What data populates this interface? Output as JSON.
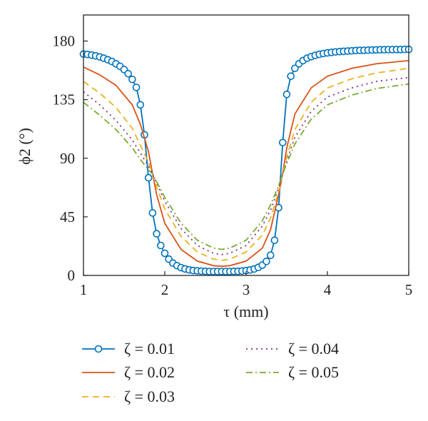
{
  "chart_data": {
    "type": "line",
    "xlabel": "τ (mm)",
    "ylabel": "ϕ2 (°)",
    "xlim": [
      1,
      5
    ],
    "ylim": [
      0,
      200
    ],
    "x_ticks": [
      "1",
      "2",
      "3",
      "4",
      "5"
    ],
    "y_ticks": [
      "0",
      "45",
      "90",
      "135",
      "180"
    ],
    "grid": false,
    "legend": "below",
    "series": [
      {
        "name": "ζ = 0.01",
        "color": "#0072BD",
        "style": "solid",
        "marker": "circle",
        "x": [
          1.0,
          1.05,
          1.1,
          1.15,
          1.2,
          1.25,
          1.3,
          1.35,
          1.4,
          1.45,
          1.5,
          1.55,
          1.6,
          1.65,
          1.7,
          1.75,
          1.8,
          1.85,
          1.9,
          1.95,
          2.0,
          2.05,
          2.1,
          2.15,
          2.2,
          2.25,
          2.3,
          2.35,
          2.4,
          2.45,
          2.5,
          2.55,
          2.6,
          2.65,
          2.7,
          2.75,
          2.8,
          2.85,
          2.9,
          2.95,
          3.0,
          3.05,
          3.1,
          3.15,
          3.2,
          3.25,
          3.3,
          3.35,
          3.4,
          3.45,
          3.5,
          3.55,
          3.6,
          3.65,
          3.7,
          3.75,
          3.8,
          3.85,
          3.9,
          3.95,
          4.0,
          4.05,
          4.1,
          4.15,
          4.2,
          4.25,
          4.3,
          4.35,
          4.4,
          4.45,
          4.5,
          4.55,
          4.6,
          4.65,
          4.7,
          4.75,
          4.8,
          4.85,
          4.9,
          4.95,
          5.0
        ],
        "y": [
          170.0,
          169.7,
          169.2,
          168.6,
          167.8,
          166.8,
          165.6,
          164.3,
          162.5,
          160.6,
          158.1,
          154.9,
          150.5,
          144.4,
          131.0,
          108.0,
          75.0,
          48.0,
          32.0,
          23.0,
          17.0,
          12.5,
          9.5,
          7.5,
          6.0,
          5.0,
          4.3,
          3.8,
          3.5,
          3.3,
          3.1,
          3.0,
          3.0,
          3.0,
          3.0,
          3.0,
          3.0,
          3.1,
          3.2,
          3.4,
          3.7,
          4.2,
          5.0,
          6.2,
          8.0,
          10.8,
          15.5,
          27.0,
          52.0,
          102.0,
          139.0,
          153.0,
          159.0,
          162.5,
          165.0,
          166.8,
          168.0,
          169.0,
          169.8,
          170.4,
          170.9,
          171.3,
          171.6,
          171.9,
          172.1,
          172.3,
          172.5,
          172.7,
          172.8,
          172.9,
          173.0,
          173.1,
          173.2,
          173.3,
          173.3,
          173.4,
          173.4,
          173.5,
          173.5,
          173.6,
          173.6
        ]
      },
      {
        "name": "ζ = 0.02",
        "color": "#D95319",
        "style": "solid",
        "marker": "none",
        "x": [
          1.0,
          1.2,
          1.4,
          1.6,
          1.7,
          1.8,
          1.85,
          1.9,
          2.0,
          2.2,
          2.4,
          2.6,
          2.7,
          2.8,
          3.0,
          3.2,
          3.3,
          3.4,
          3.45,
          3.5,
          3.6,
          3.8,
          4.0,
          4.3,
          4.6,
          5.0
        ],
        "y": [
          160.0,
          154.0,
          146.0,
          131.0,
          116.0,
          95.0,
          78.0,
          62.0,
          40.0,
          20.0,
          11.0,
          7.5,
          7.0,
          7.5,
          11.0,
          21.0,
          35.0,
          62.0,
          78.0,
          98.0,
          124.0,
          144.0,
          153.0,
          159.0,
          162.5,
          165.0
        ]
      },
      {
        "name": "ζ = 0.03",
        "color": "#EDB120",
        "style": "dashed",
        "marker": "none",
        "x": [
          1.0,
          1.2,
          1.4,
          1.6,
          1.7,
          1.8,
          1.85,
          1.9,
          2.0,
          2.2,
          2.4,
          2.6,
          2.7,
          2.8,
          3.0,
          3.2,
          3.3,
          3.4,
          3.45,
          3.5,
          3.6,
          3.8,
          4.0,
          4.3,
          4.6,
          5.0
        ],
        "y": [
          149.0,
          140.0,
          129.0,
          113.0,
          100.0,
          87.0,
          78.0,
          68.0,
          51.0,
          30.0,
          18.0,
          12.5,
          11.5,
          12.5,
          18.0,
          31.0,
          44.0,
          64.0,
          78.0,
          91.0,
          112.0,
          133.0,
          144.0,
          151.0,
          155.5,
          159.0
        ]
      },
      {
        "name": "ζ = 0.04",
        "color": "#7E2F8E",
        "style": "dotted",
        "marker": "none",
        "x": [
          1.0,
          1.2,
          1.4,
          1.6,
          1.7,
          1.8,
          1.85,
          1.9,
          2.0,
          2.2,
          2.4,
          2.6,
          2.7,
          2.8,
          3.0,
          3.2,
          3.3,
          3.4,
          3.45,
          3.5,
          3.6,
          3.8,
          4.0,
          4.3,
          4.6,
          5.0
        ],
        "y": [
          141.0,
          131.0,
          119.0,
          104.0,
          94.0,
          84.0,
          78.0,
          71.0,
          57.0,
          36.0,
          23.0,
          17.0,
          16.0,
          17.0,
          23.0,
          38.0,
          50.0,
          67.0,
          78.0,
          88.0,
          106.0,
          126.0,
          137.0,
          144.0,
          149.0,
          152.0
        ]
      },
      {
        "name": "ζ = 0.05",
        "color": "#77AC30",
        "style": "dashdot",
        "marker": "none",
        "x": [
          1.0,
          1.2,
          1.4,
          1.6,
          1.7,
          1.8,
          1.85,
          1.9,
          2.0,
          2.2,
          2.4,
          2.6,
          2.7,
          2.8,
          3.0,
          3.2,
          3.3,
          3.4,
          3.45,
          3.5,
          3.6,
          3.8,
          4.0,
          4.3,
          4.6,
          5.0
        ],
        "y": [
          133.0,
          123.0,
          112.0,
          98.0,
          89.0,
          81.0,
          78.0,
          72.0,
          60.0,
          40.0,
          27.0,
          21.0,
          20.0,
          21.0,
          27.0,
          42.0,
          54.0,
          69.0,
          78.0,
          86.0,
          101.0,
          120.0,
          131.0,
          138.5,
          143.5,
          147.0
        ]
      }
    ]
  }
}
